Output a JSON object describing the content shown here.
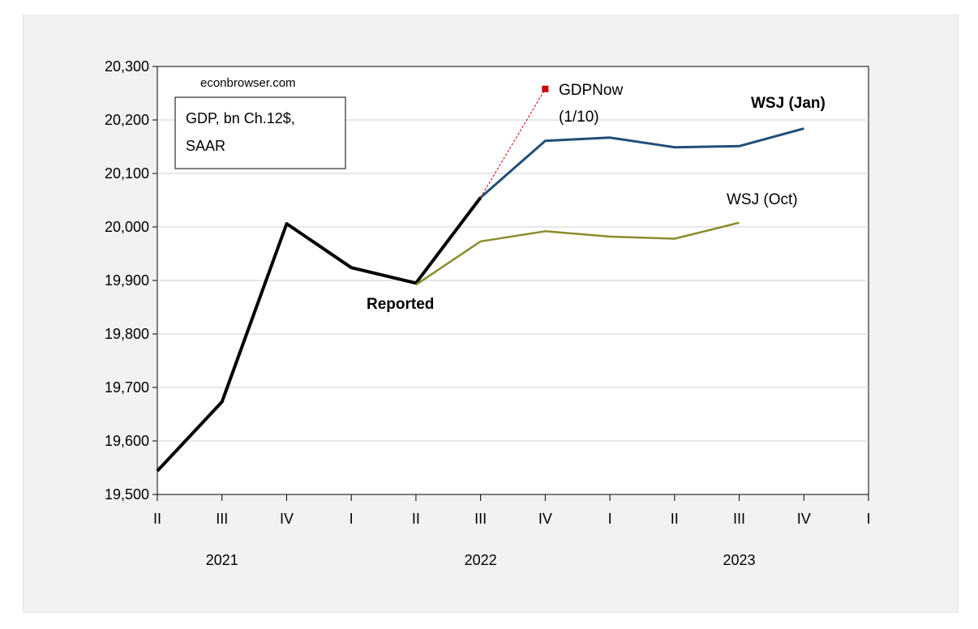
{
  "chart_data": {
    "type": "line",
    "ylim": [
      19500,
      20300
    ],
    "y_ticks": [
      "19,500",
      "19,600",
      "19,700",
      "19,800",
      "19,900",
      "20,000",
      "20,100",
      "20,200",
      "20,300"
    ],
    "y_tick_values": [
      19500,
      19600,
      19700,
      19800,
      19900,
      20000,
      20100,
      20200,
      20300
    ],
    "quarters": [
      "2021Q2",
      "2021Q3",
      "2021Q4",
      "2022Q1",
      "2022Q2",
      "2022Q3",
      "2022Q4",
      "2023Q1",
      "2023Q2",
      "2023Q3",
      "2023Q4",
      "2024Q1"
    ],
    "x_tick_labels": [
      "II",
      "III",
      "IV",
      "I",
      "II",
      "III",
      "IV",
      "I",
      "II",
      "III",
      "IV",
      "I"
    ],
    "year_labels": [
      {
        "label": "2021",
        "quarter": "2021Q3"
      },
      {
        "label": "2022",
        "quarter": "2022Q3"
      },
      {
        "label": "2023",
        "quarter": "2023Q3"
      }
    ],
    "grid": true,
    "source_label": "econbrowser.com",
    "legend_box": [
      "GDP, bn Ch.12$,",
      "SAAR"
    ],
    "series": [
      {
        "name": "Reported",
        "color": "#000000",
        "points": [
          [
            "2021Q2",
            19544
          ],
          [
            "2021Q3",
            19673
          ],
          [
            "2021Q4",
            20006
          ],
          [
            "2022Q1",
            19924
          ],
          [
            "2022Q2",
            19895
          ],
          [
            "2022Q3",
            20055
          ]
        ]
      },
      {
        "name": "WSJ (Jan)",
        "color": "#1f4e79",
        "points": [
          [
            "2022Q3",
            20055
          ],
          [
            "2022Q4",
            20161
          ],
          [
            "2023Q1",
            20167
          ],
          [
            "2023Q2",
            20149
          ],
          [
            "2023Q3",
            20151
          ],
          [
            "2023Q4",
            20184
          ]
        ]
      },
      {
        "name": "WSJ (Oct)",
        "color": "#8b8b2e",
        "points": [
          [
            "2022Q2",
            19892
          ],
          [
            "2022Q3",
            19973
          ],
          [
            "2022Q4",
            19992
          ],
          [
            "2023Q1",
            19982
          ],
          [
            "2023Q2",
            19978
          ],
          [
            "2023Q3",
            20008
          ]
        ]
      },
      {
        "name": "GDPNow",
        "name_line2": "(1/10)",
        "color": "#cc0000",
        "points": [
          [
            "2022Q3",
            20055
          ],
          [
            "2022Q4",
            20258
          ]
        ]
      }
    ],
    "label_colors": {
      "WSJ (Jan)": "#1f3a93",
      "WSJ (Oct)": "#8b8b2e",
      "GDPNow": "#d42020",
      "Reported": "#000000"
    }
  }
}
